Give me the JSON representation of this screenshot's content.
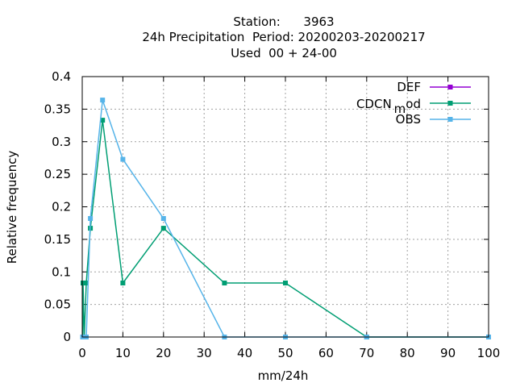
{
  "chart_data": {
    "type": "line",
    "title_lines": [
      "Station:      3963",
      "24h Precipitation  Period: 20200203-20200217",
      "Used  00 + 24-00"
    ],
    "xlabel": "mm/24h",
    "ylabel": "Relative frequency",
    "xlim": [
      0,
      100
    ],
    "ylim": [
      0,
      0.4
    ],
    "xticks": [
      0,
      10,
      20,
      30,
      40,
      50,
      60,
      70,
      80,
      90,
      100
    ],
    "yticks": [
      0,
      0.05,
      0.1,
      0.15,
      0.2,
      0.25,
      0.3,
      0.35,
      0.4
    ],
    "xtick_labels": [
      "0",
      "10",
      "20",
      "30",
      "40",
      "50",
      "60",
      "70",
      "80",
      "90",
      "100"
    ],
    "ytick_labels": [
      "0",
      "0.05",
      "0.1",
      "0.15",
      "0.2",
      "0.25",
      "0.3",
      "0.35",
      "0.4"
    ],
    "grid": true,
    "legend_position": "top-right",
    "series": [
      {
        "name": "DEF",
        "color": "#9400d3",
        "x": [],
        "y": []
      },
      {
        "name_main": "CDCN",
        "name_sub": "m",
        "name_tail": "od",
        "color": "#009e73",
        "x": [
          0.1,
          0.2,
          0.5,
          1,
          2,
          5,
          10,
          20,
          35,
          50,
          70,
          100
        ],
        "y": [
          0.0,
          0.083,
          0.0,
          0.083,
          0.167,
          0.333,
          0.083,
          0.167,
          0.083,
          0.083,
          0.0,
          0.0
        ]
      },
      {
        "name": "OBS",
        "color": "#56b4e9",
        "x": [
          0.1,
          0.2,
          0.5,
          1,
          2,
          5,
          10,
          20,
          35,
          50,
          70,
          100
        ],
        "y": [
          0.0,
          0.0,
          0.0,
          0.0,
          0.182,
          0.364,
          0.273,
          0.182,
          0.0,
          0.0,
          0.0,
          0.0
        ]
      }
    ]
  }
}
